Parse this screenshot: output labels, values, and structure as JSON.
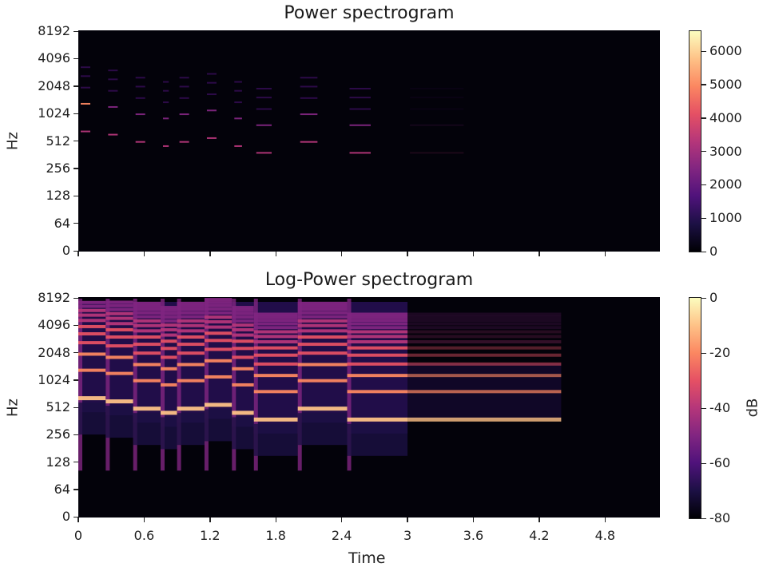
{
  "chart_data": [
    {
      "type": "heatmap",
      "title": "Power spectrogram",
      "xlabel": "",
      "ylabel": "Hz",
      "y_scale": "log",
      "y_ticks": [
        "0",
        "64",
        "128",
        "256",
        "512",
        "1024",
        "2048",
        "4096",
        "8192"
      ],
      "xlim": [
        0,
        5.3
      ],
      "colormap": "magma",
      "colorbar": {
        "label": "",
        "ticks": [
          "0",
          "1000",
          "2000",
          "3000",
          "4000",
          "5000",
          "6000"
        ],
        "range": [
          0,
          6600
        ]
      },
      "x_ticks_labeled": false,
      "note_events": [
        {
          "start": 0.0,
          "end": 0.25,
          "freq_hz": 650
        },
        {
          "start": 0.25,
          "end": 0.5,
          "freq_hz": 600
        },
        {
          "start": 0.5,
          "end": 0.75,
          "freq_hz": 500
        },
        {
          "start": 0.75,
          "end": 0.9,
          "freq_hz": 450
        },
        {
          "start": 0.9,
          "end": 1.15,
          "freq_hz": 500
        },
        {
          "start": 1.15,
          "end": 1.4,
          "freq_hz": 550
        },
        {
          "start": 1.4,
          "end": 1.6,
          "freq_hz": 450
        },
        {
          "start": 1.6,
          "end": 2.0,
          "freq_hz": 380
        },
        {
          "start": 2.0,
          "end": 2.45,
          "freq_hz": 500
        },
        {
          "start": 2.45,
          "end": 3.0,
          "freq_hz": 380
        },
        {
          "start": 3.0,
          "end": 4.4,
          "freq_hz": 380
        }
      ]
    },
    {
      "type": "heatmap",
      "title": "Log-Power spectrogram",
      "xlabel": "Time",
      "ylabel": "Hz",
      "y_scale": "log",
      "y_ticks": [
        "0",
        "64",
        "128",
        "256",
        "512",
        "1024",
        "2048",
        "4096",
        "8192"
      ],
      "x_ticks": [
        "0",
        "0.6",
        "1.2",
        "1.8",
        "2.4",
        "3",
        "3.6",
        "4.2",
        "4.8"
      ],
      "xlim": [
        0,
        5.3
      ],
      "colormap": "magma",
      "colorbar": {
        "label": "dB",
        "ticks": [
          "0",
          "-20",
          "-40",
          "-60",
          "-80"
        ],
        "range": [
          -80,
          0
        ]
      }
    }
  ]
}
